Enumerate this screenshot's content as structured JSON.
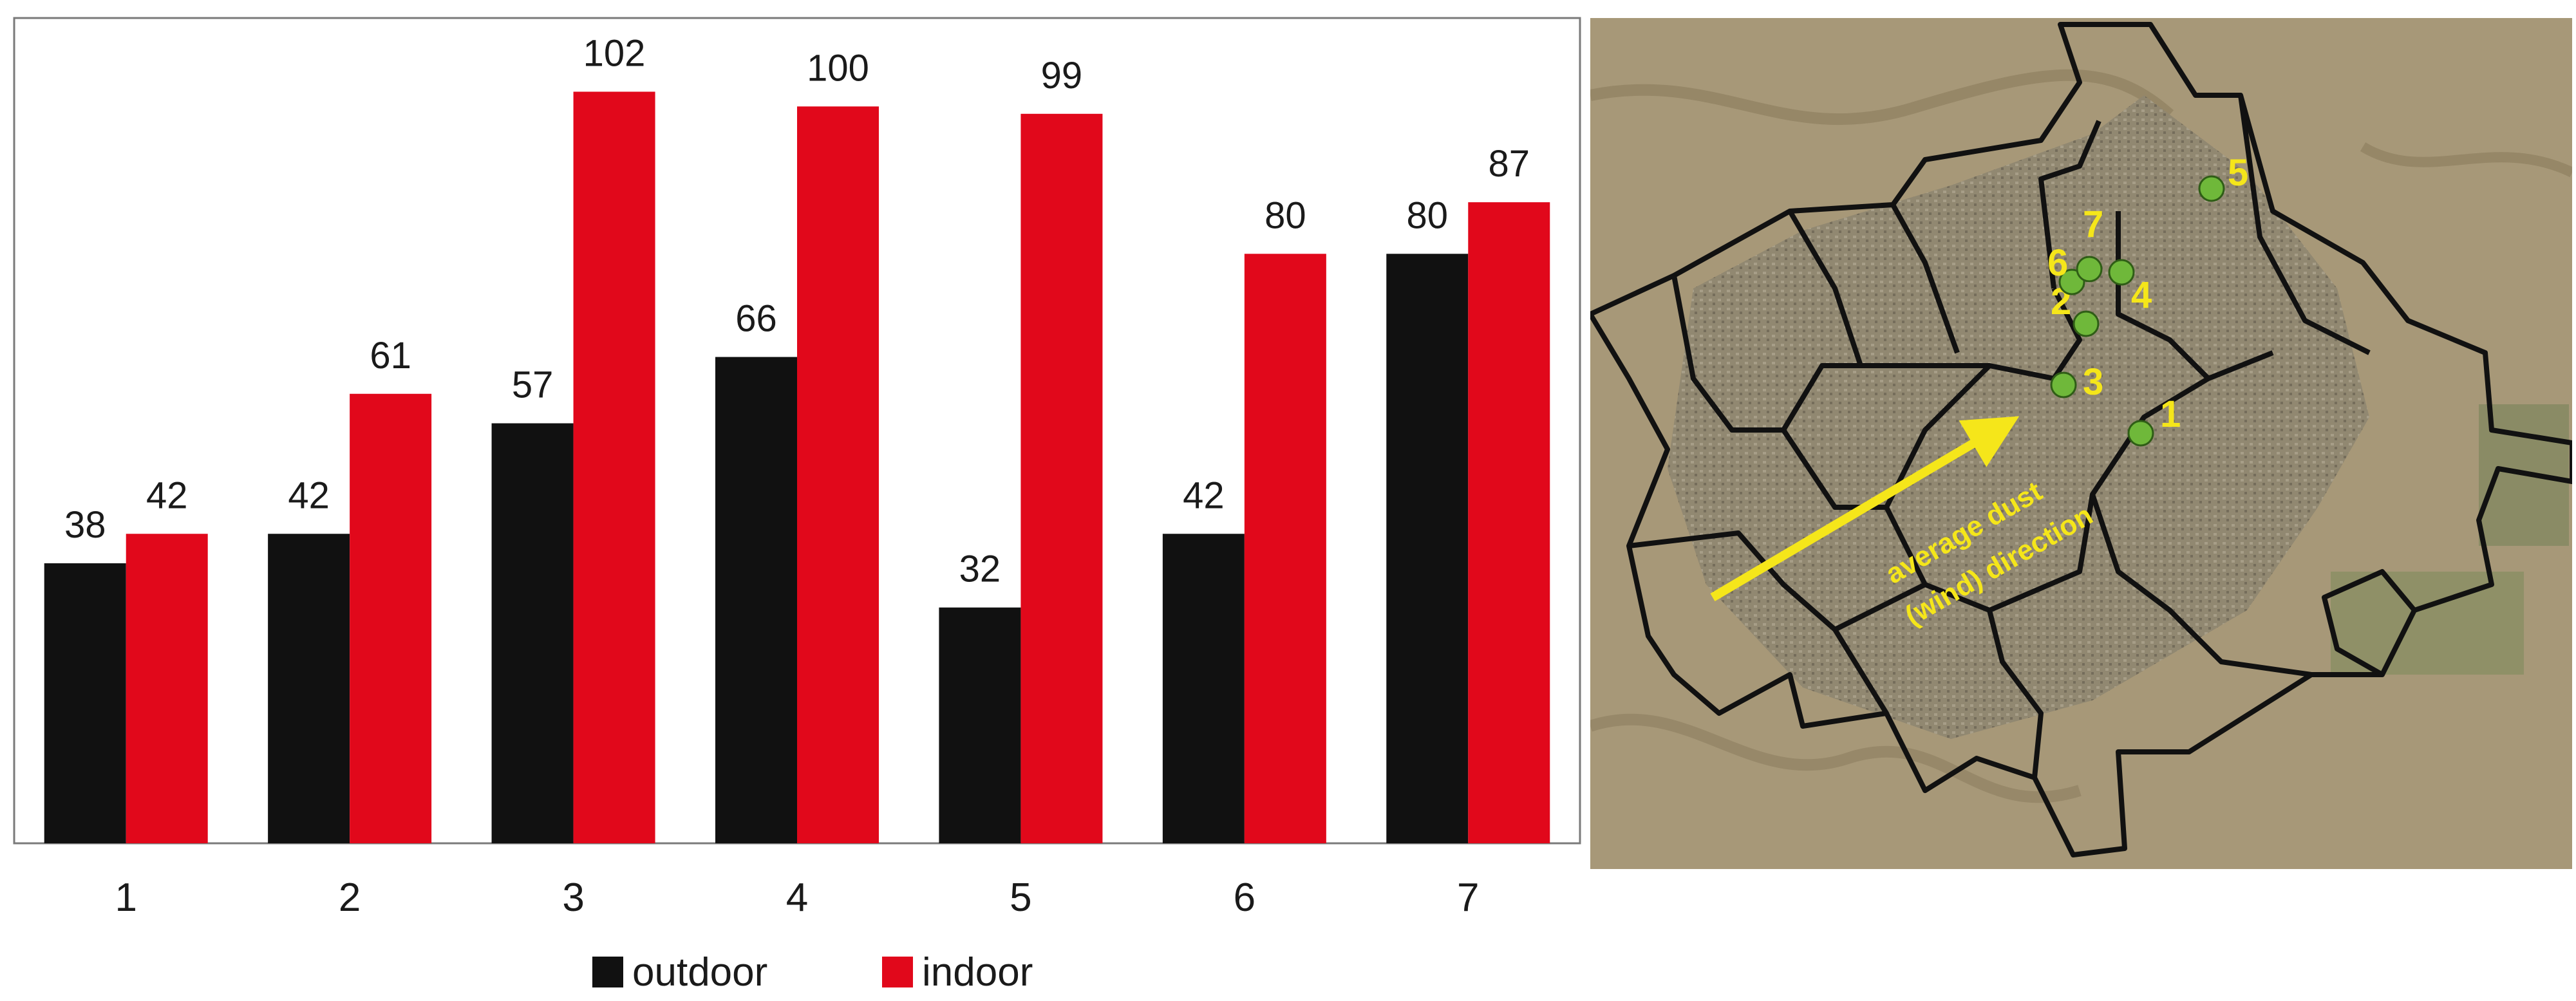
{
  "chart_data": {
    "type": "bar",
    "categories": [
      "1",
      "2",
      "3",
      "4",
      "5",
      "6",
      "7"
    ],
    "series": [
      {
        "name": "outdoor",
        "color": "#111111",
        "values": [
          38,
          42,
          57,
          66,
          32,
          42,
          80
        ]
      },
      {
        "name": "indoor",
        "color": "#e1081b",
        "values": [
          42,
          61,
          102,
          100,
          99,
          80,
          87
        ]
      }
    ],
    "title": "",
    "xlabel": "",
    "ylabel": "",
    "ylim": [
      0,
      112
    ],
    "grid": false,
    "legend": "bottom",
    "data_labels": true
  },
  "map": {
    "arrow_label_line1": "average dust",
    "arrow_label_line2": "(wind) direction",
    "text_color": "#f5e61a",
    "marker_color": "#6fb83a",
    "sites": [
      {
        "label": "1"
      },
      {
        "label": "2"
      },
      {
        "label": "3"
      },
      {
        "label": "4"
      },
      {
        "label": "5"
      },
      {
        "label": "6"
      },
      {
        "label": "7"
      }
    ]
  }
}
